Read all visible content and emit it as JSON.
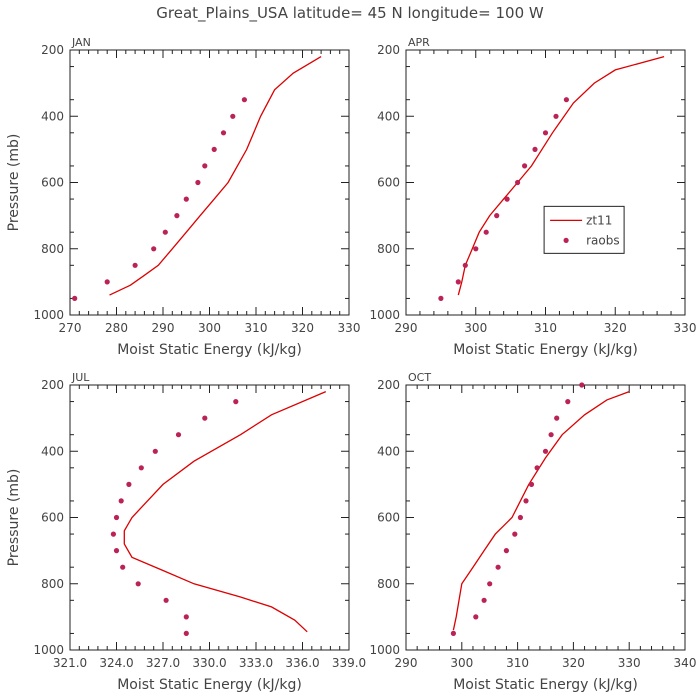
{
  "title": "Great_Plains_USA   latitude= 45 N longitude= 100 W",
  "colors": {
    "model": "#dd0000",
    "obs": "#bb2255",
    "axis": "#222222",
    "text": "#444444"
  },
  "legend": {
    "model_label": "zt11",
    "obs_label": "raobs"
  },
  "chart_data": [
    {
      "type": "line",
      "panel": "JAN",
      "title": "JAN",
      "xlabel": "Moist Static Energy (kJ/kg)",
      "ylabel": "Pressure (mb)",
      "xlim": [
        270,
        330
      ],
      "ylim": [
        1000,
        200
      ],
      "xticks": [
        "270",
        "280",
        "290",
        "300",
        "310",
        "320",
        "330"
      ],
      "yticks": [
        "200",
        "400",
        "600",
        "800",
        "1000"
      ],
      "series": [
        {
          "name": "zt11",
          "kind": "line",
          "x": [
            278.5,
            283,
            286,
            289,
            292,
            295,
            298,
            301,
            304,
            306,
            308,
            311,
            314,
            318,
            324
          ],
          "y": [
            940,
            910,
            880,
            850,
            800,
            750,
            700,
            650,
            600,
            550,
            500,
            400,
            320,
            270,
            220
          ]
        },
        {
          "name": "raobs",
          "kind": "scatter",
          "x": [
            271,
            278,
            284,
            288,
            290.5,
            293,
            295,
            297.5,
            299,
            301,
            303,
            305,
            307.5
          ],
          "y": [
            950,
            900,
            850,
            800,
            750,
            700,
            650,
            600,
            550,
            500,
            450,
            400,
            350
          ]
        }
      ]
    },
    {
      "type": "line",
      "panel": "APR",
      "title": "APR",
      "xlabel": "Moist Static Energy (kJ/kg)",
      "ylabel": "",
      "xlim": [
        290,
        330
      ],
      "ylim": [
        1000,
        200
      ],
      "xticks": [
        "290",
        "300",
        "310",
        "320",
        "330"
      ],
      "yticks": [
        "200",
        "400",
        "600",
        "800",
        "1000"
      ],
      "legend": true,
      "series": [
        {
          "name": "zt11",
          "kind": "line",
          "x": [
            297.5,
            298,
            298.5,
            299.5,
            300.5,
            302,
            304,
            306,
            308,
            311,
            314,
            317,
            320,
            327
          ],
          "y": [
            940,
            900,
            850,
            800,
            750,
            700,
            650,
            600,
            550,
            450,
            360,
            300,
            260,
            220
          ]
        },
        {
          "name": "raobs",
          "kind": "scatter",
          "x": [
            295,
            297.5,
            298.5,
            300,
            301.5,
            303,
            304.5,
            306,
            307,
            308.5,
            310,
            311.5,
            313
          ],
          "y": [
            950,
            900,
            850,
            800,
            750,
            700,
            650,
            600,
            550,
            500,
            450,
            400,
            350
          ]
        }
      ]
    },
    {
      "type": "line",
      "panel": "JUL",
      "title": "JUL",
      "xlabel": "Moist Static Energy (kJ/kg)",
      "ylabel": "Pressure (mb)",
      "xlim": [
        321,
        339
      ],
      "ylim": [
        1000,
        200
      ],
      "xticks": [
        "321.0",
        "324.0",
        "327.0",
        "330.0",
        "333.0",
        "336.0",
        "339.0"
      ],
      "yticks": [
        "200",
        "400",
        "600",
        "800",
        "1000"
      ],
      "series": [
        {
          "name": "zt11",
          "kind": "line",
          "x": [
            336.3,
            335.5,
            334,
            332,
            329,
            327,
            325,
            324.5,
            324.5,
            325,
            326,
            327,
            329,
            332,
            334,
            337.5
          ],
          "y": [
            945,
            910,
            870,
            840,
            800,
            760,
            720,
            680,
            640,
            600,
            550,
            500,
            430,
            350,
            290,
            220
          ]
        },
        {
          "name": "raobs",
          "kind": "scatter",
          "x": [
            328.5,
            328.5,
            327.2,
            325.4,
            324.4,
            324,
            323.8,
            324,
            324.3,
            324.8,
            325.6,
            326.5,
            328,
            329.7,
            331.7
          ],
          "y": [
            950,
            900,
            850,
            800,
            750,
            700,
            650,
            600,
            550,
            500,
            450,
            400,
            350,
            300,
            250
          ]
        }
      ]
    },
    {
      "type": "line",
      "panel": "OCT",
      "title": "OCT",
      "xlabel": "Moist Static Energy (kJ/kg)",
      "ylabel": "",
      "xlim": [
        290,
        340
      ],
      "ylim": [
        1000,
        200
      ],
      "xticks": [
        "290",
        "300",
        "310",
        "320",
        "330",
        "340"
      ],
      "yticks": [
        "200",
        "400",
        "600",
        "800",
        "1000"
      ],
      "series": [
        {
          "name": "zt11",
          "kind": "line",
          "x": [
            298.5,
            299,
            299.5,
            300,
            302,
            304,
            306,
            309,
            312,
            315,
            318,
            322,
            326,
            330
          ],
          "y": [
            940,
            900,
            850,
            800,
            750,
            700,
            650,
            600,
            500,
            420,
            350,
            290,
            245,
            220
          ]
        },
        {
          "name": "raobs",
          "kind": "scatter",
          "x": [
            298.5,
            302.5,
            304,
            305,
            306.5,
            308,
            309.5,
            310.5,
            311.5,
            312.5,
            313.5,
            315,
            316,
            317,
            319,
            321.5
          ],
          "y": [
            950,
            900,
            850,
            800,
            750,
            700,
            650,
            600,
            550,
            500,
            450,
            400,
            350,
            300,
            250,
            200
          ]
        }
      ]
    }
  ]
}
